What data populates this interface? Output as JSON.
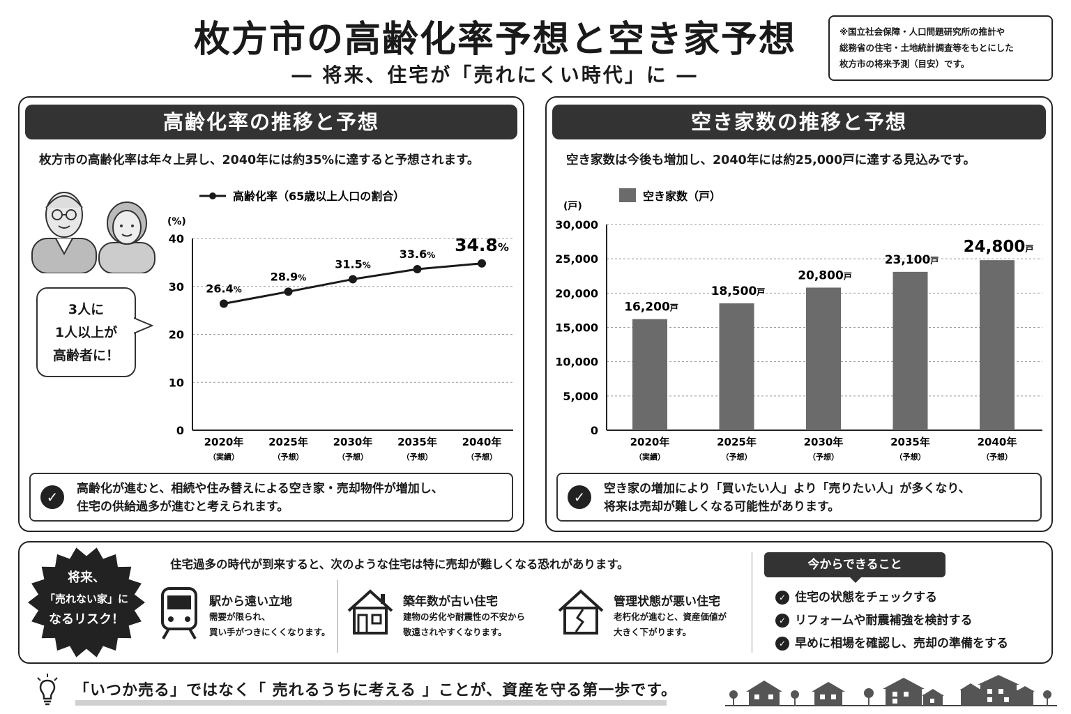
{
  "header": {
    "title": "枚方市の高齢化率予想と空き家予想",
    "subtitle": "― 将来、住宅が「売れにくい時代」に ―",
    "note": [
      "※国立社会保障・人口問題研究所の推計や",
      "総務省の住宅・土地統計調査等をもとにした",
      "枚方市の将来予測（目安）です。"
    ]
  },
  "left_panel": {
    "heading": "高齢化率の推移と予想",
    "lead": "枚方市の高齢化率は年々上昇し、2040年には約35%に達すると予想されます。",
    "bubble": [
      "3人に",
      "1人以上が",
      "高齢者に！"
    ],
    "check_text": [
      "高齢化が進むと、相続や住み替えによる空き家・売却物件が増加し、",
      "住宅の供給過多が進むと考えられます。"
    ]
  },
  "right_panel": {
    "heading": "空き家数の推移と予想",
    "lead": "空き家数は今後も増加し、2040年には約25,000戸に達する見込みです。",
    "check_text": [
      "空き家の増加により「買いたい人」より「売りたい人」が多くなり、",
      "将来は売却が難しくなる可能性があります。"
    ]
  },
  "risk_section": {
    "badge": [
      "将来、",
      "「売れない家」に",
      "なるリスク！"
    ],
    "lead": "住宅過多の時代が到来すると、次のような住宅は特に売却が難しくなる恐れがあります。",
    "items": [
      {
        "title": "駅から遠い立地",
        "desc": [
          "需要が限られ、",
          "買い手がつきにくくなります。"
        ],
        "icon": "train-icon"
      },
      {
        "title": "築年数が古い住宅",
        "desc": [
          "建物の劣化や耐震性の不安から",
          "敬遠されやすくなります。"
        ],
        "icon": "old-house-icon"
      },
      {
        "title": "管理状態が悪い住宅",
        "desc": [
          "老朽化が進むと、資産価値が",
          "大きく下がります。"
        ],
        "icon": "cracked-house-icon"
      }
    ],
    "todo_heading": "今からできること",
    "todo": [
      "住宅の状態をチェックする",
      "リフォームや耐震補強を検討する",
      "早めに相場を確認し、売却の準備をする"
    ]
  },
  "footer": {
    "text": "「いつか売る」ではなく「 売れるうちに考える 」ことが、資産を守る第一歩です。"
  },
  "chart_data": [
    {
      "type": "line",
      "title": "",
      "legend": "高齢化率（65歳以上人口の割合）",
      "ylabel": "(%)",
      "categories": [
        "2020年",
        "2025年",
        "2030年",
        "2035年",
        "2040年"
      ],
      "category_notes": [
        "（実績）",
        "（予想）",
        "（予想）",
        "（予想）",
        "（予想）"
      ],
      "values": [
        26.4,
        28.9,
        31.5,
        33.6,
        34.8
      ],
      "value_labels": [
        "26.4",
        "28.9",
        "31.5",
        "33.6",
        "34.8"
      ],
      "value_unit": "%",
      "yticks": [
        "0",
        "10",
        "20",
        "30",
        "40"
      ],
      "ylim": [
        0,
        40
      ],
      "grid": true,
      "color": "#1a1a1a"
    },
    {
      "type": "bar",
      "title": "",
      "legend": "空き家数（戸）",
      "ylabel": "(戸)",
      "categories": [
        "2020年",
        "2025年",
        "2030年",
        "2035年",
        "2040年"
      ],
      "category_notes": [
        "（実績）",
        "（予想）",
        "（予想）",
        "（予想）",
        "（予想）"
      ],
      "values": [
        16200,
        18500,
        20800,
        23100,
        24800
      ],
      "value_labels": [
        "16,200",
        "18,500",
        "20,800",
        "23,100",
        "24,800"
      ],
      "value_unit": "戸",
      "yticks": [
        "0",
        "5,000",
        "10,000",
        "15,000",
        "20,000",
        "25,000",
        "30,000"
      ],
      "ylim": [
        0,
        30000
      ],
      "grid": true,
      "color": "#6b6b6b"
    }
  ]
}
